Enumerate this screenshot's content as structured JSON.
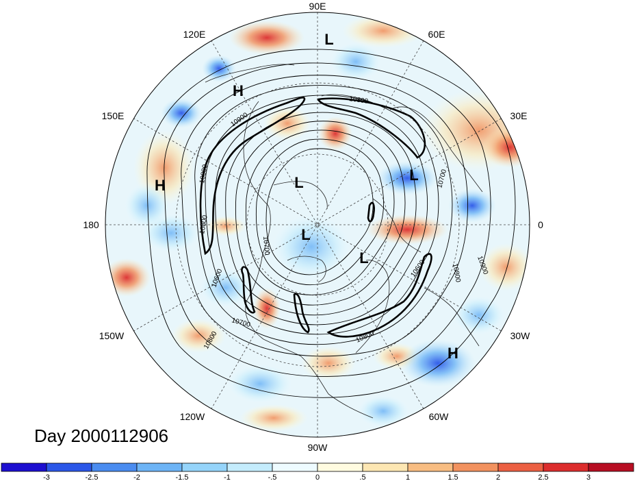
{
  "title": "Day 2000112906",
  "longitude_labels": [
    "90E",
    "60E",
    "30E",
    "0",
    "30W",
    "60W",
    "90W",
    "120W",
    "150W",
    "180",
    "150E",
    "120E"
  ],
  "pressure_centers": [
    {
      "type": "L",
      "region": "Siberia"
    },
    {
      "type": "H",
      "region": "East Asia"
    },
    {
      "type": "H",
      "region": "North Pacific west"
    },
    {
      "type": "L",
      "region": "Kara Sea"
    },
    {
      "type": "L",
      "region": "Arctic Ocean"
    },
    {
      "type": "L",
      "region": "North Pole"
    },
    {
      "type": "L",
      "region": "Baffin Bay"
    },
    {
      "type": "H",
      "region": "North Atlantic"
    }
  ],
  "contour_labels": [
    "10800",
    "10900",
    "10800",
    "10700",
    "10800",
    "10800",
    "10900",
    "10600",
    "10600",
    "10700",
    "10800",
    "10700",
    "10800"
  ],
  "colorbar": {
    "colors": [
      "#1d0fd0",
      "#2b57e8",
      "#4a8cf0",
      "#6db4f6",
      "#95d4fa",
      "#c4ecfc",
      "#eefbff",
      "#fffbe0",
      "#fde7b3",
      "#f8bd82",
      "#f2925f",
      "#ec6043",
      "#dc2d2d",
      "#b70e22"
    ],
    "tick_labels": [
      "-3",
      "-2.5",
      "-2",
      "-1.5",
      "-1",
      "-.5",
      "0",
      ".5",
      "1",
      "1.5",
      "2",
      "2.5",
      "3"
    ]
  }
}
